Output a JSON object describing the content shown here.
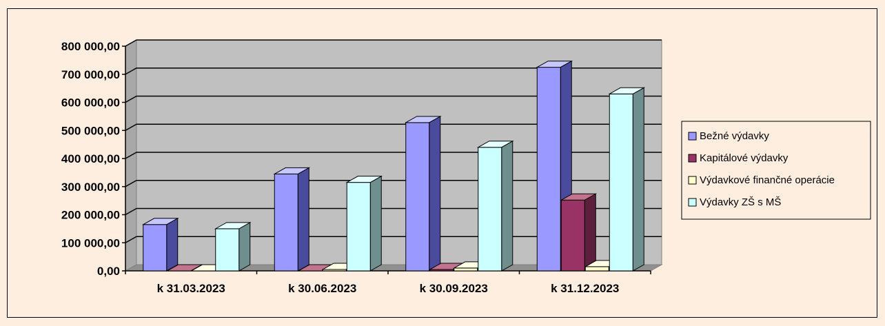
{
  "chart_data": {
    "type": "bar",
    "categories": [
      "k 31.03.2023",
      "k 30.06.2023",
      "k 30.09.2023",
      "k 31.12.2023"
    ],
    "series": [
      {
        "name": "Bežné výdavky",
        "values": [
          165000,
          345000,
          528000,
          725000
        ],
        "color": "#9999ff",
        "side": "#4b4b9e",
        "top": "#c7c7ff"
      },
      {
        "name": "Kapitálové výdavky",
        "values": [
          0,
          0,
          5000,
          252000
        ],
        "color": "#993366",
        "side": "#5c1f3d",
        "top": "#c4738f"
      },
      {
        "name": "Výdavkové finančné operácie",
        "values": [
          0,
          5000,
          10000,
          15000
        ],
        "color": "#ffffcc",
        "side": "#a8a880",
        "top": "#ffffe6"
      },
      {
        "name": "Výdavky ZŠ s MŠ",
        "values": [
          150000,
          315000,
          440000,
          630000
        ],
        "color": "#ccffff",
        "side": "#6f8f8f",
        "top": "#e6ffff"
      }
    ],
    "ylim": [
      0,
      800000
    ],
    "yticks": [
      "0,00",
      "100 000,00",
      "200 000,00",
      "300 000,00",
      "400 000,00",
      "500 000,00",
      "600 000,00",
      "700 000,00",
      "800 000,00"
    ],
    "plot_background": "#c0c0c0",
    "grid": true,
    "legend": "right"
  }
}
